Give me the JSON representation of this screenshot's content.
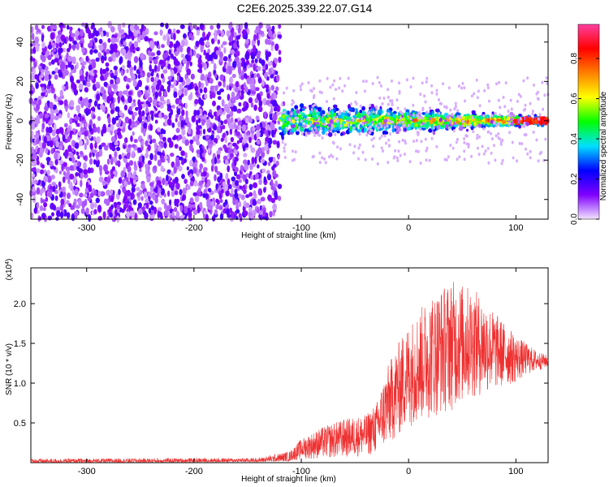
{
  "title": "C2E6.2025.339.22.07.G14",
  "chart_data": [
    {
      "type": "heatmap",
      "name": "spectrogram",
      "xlabel": "Height of straight line (km)",
      "ylabel": "Frequency (Hz)",
      "xlim": [
        -352,
        130
      ],
      "ylim": [
        -50,
        49
      ],
      "xticks": [
        -300,
        -200,
        -100,
        0,
        100
      ],
      "yticks": [
        -40,
        -20,
        0,
        20,
        40
      ],
      "colorbar": {
        "label": "Normalized spectral amplitude",
        "range": [
          0,
          0.97
        ],
        "ticks": [
          0.0,
          0.2,
          0.4,
          0.6,
          0.8
        ],
        "tick_labels": [
          "0.0",
          "0.2",
          "0.4",
          "0.6",
          "0.8"
        ],
        "colors": [
          "#f2e4ff",
          "#8000ff",
          "#0000ff",
          "#00e0ff",
          "#00ff00",
          "#ffff00",
          "#ff8000",
          "#ff0000",
          "#ff40a0"
        ]
      },
      "regions": [
        {
          "x_from": -352,
          "x_to": -120,
          "description_free": true,
          "freq_span": [
            -50,
            49
          ],
          "amplitude": 0.08
        },
        {
          "x_from": -120,
          "x_to": 130,
          "freq_center": 0,
          "freq_half_width_start": 9,
          "freq_half_width_end": 2,
          "amplitude_peak": 0.9
        }
      ]
    },
    {
      "type": "line",
      "name": "snr",
      "xlabel": "Height of straight line (km)",
      "ylabel": "SNR (10 * v/v)",
      "y_scale_label": "(x10",
      "y_scale_exp": "4",
      "xlim": [
        -352,
        130
      ],
      "ylim": [
        0,
        2.45
      ],
      "xticks": [
        -300,
        -200,
        -100,
        0,
        100
      ],
      "yticks": [
        0.5,
        1.0,
        1.5,
        2.0
      ],
      "ytick_labels": [
        "0.5",
        "1.0",
        "1.5",
        "2.0"
      ],
      "color": "#ee3030",
      "envelope": {
        "x": [
          -352,
          -140,
          -110,
          -100,
          -80,
          -60,
          -40,
          -30,
          -20,
          -10,
          0,
          20,
          40,
          60,
          80,
          100,
          110,
          120,
          130
        ],
        "low": [
          0.0,
          0.01,
          0.02,
          0.04,
          0.05,
          0.06,
          0.08,
          0.1,
          0.2,
          0.3,
          0.45,
          0.55,
          0.65,
          0.8,
          0.9,
          1.0,
          1.1,
          1.15,
          1.2
        ],
        "high": [
          0.05,
          0.06,
          0.15,
          0.3,
          0.45,
          0.55,
          0.6,
          0.75,
          1.2,
          1.5,
          1.75,
          2.1,
          2.3,
          2.2,
          1.9,
          1.6,
          1.5,
          1.4,
          1.35
        ]
      }
    }
  ]
}
